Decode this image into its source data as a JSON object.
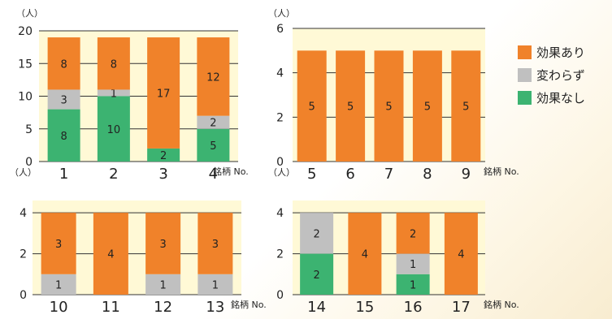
{
  "colors": {
    "effective": "#f0822a",
    "unchanged": "#c0c0c0",
    "not_effective": "#3cb371",
    "panel_bg": "#fff9d6"
  },
  "legend": [
    {
      "label": "効果あり",
      "color_key": "effective"
    },
    {
      "label": "変わらず",
      "color_key": "unchanged"
    },
    {
      "label": "効果なし",
      "color_key": "not_effective"
    }
  ],
  "chart_data": [
    {
      "type": "bar",
      "stacked": true,
      "unit_label": "（人）",
      "xlabel": "銘柄 No.",
      "categories": [
        "1",
        "2",
        "3",
        "4"
      ],
      "ylim": [
        0,
        20
      ],
      "yticks": [
        0,
        5,
        10,
        15,
        20
      ],
      "series": [
        {
          "key": "not_effective",
          "values": [
            8,
            10,
            2,
            5
          ]
        },
        {
          "key": "unchanged",
          "values": [
            3,
            1,
            0,
            2
          ]
        },
        {
          "key": "effective",
          "values": [
            8,
            8,
            17,
            12
          ]
        }
      ]
    },
    {
      "type": "bar",
      "stacked": true,
      "unit_label": "（人）",
      "xlabel": "銘柄 No.",
      "categories": [
        "5",
        "6",
        "7",
        "8",
        "9"
      ],
      "ylim": [
        0,
        6
      ],
      "yticks": [
        0,
        2,
        4,
        6
      ],
      "series": [
        {
          "key": "not_effective",
          "values": [
            0,
            0,
            0,
            0,
            0
          ]
        },
        {
          "key": "unchanged",
          "values": [
            0,
            0,
            0,
            0,
            0
          ]
        },
        {
          "key": "effective",
          "values": [
            5,
            5,
            5,
            5,
            5
          ]
        }
      ]
    },
    {
      "type": "bar",
      "stacked": true,
      "unit_label": "（人）",
      "xlabel": "銘柄 No.",
      "categories": [
        "10",
        "11",
        "12",
        "13"
      ],
      "ylim": [
        0,
        4.6
      ],
      "yticks": [
        0,
        2,
        4
      ],
      "series": [
        {
          "key": "not_effective",
          "values": [
            0,
            0,
            0,
            0
          ]
        },
        {
          "key": "unchanged",
          "values": [
            1,
            0,
            1,
            1
          ]
        },
        {
          "key": "effective",
          "values": [
            3,
            4,
            3,
            3
          ]
        }
      ]
    },
    {
      "type": "bar",
      "stacked": true,
      "unit_label": "（人）",
      "xlabel": "銘柄 No.",
      "categories": [
        "14",
        "15",
        "16",
        "17"
      ],
      "ylim": [
        0,
        4.6
      ],
      "yticks": [
        0,
        2,
        4
      ],
      "series": [
        {
          "key": "not_effective",
          "values": [
            2,
            0,
            1,
            0
          ]
        },
        {
          "key": "unchanged",
          "values": [
            2,
            0,
            1,
            0
          ]
        },
        {
          "key": "effective",
          "values": [
            0,
            4,
            2,
            4
          ]
        }
      ]
    }
  ]
}
